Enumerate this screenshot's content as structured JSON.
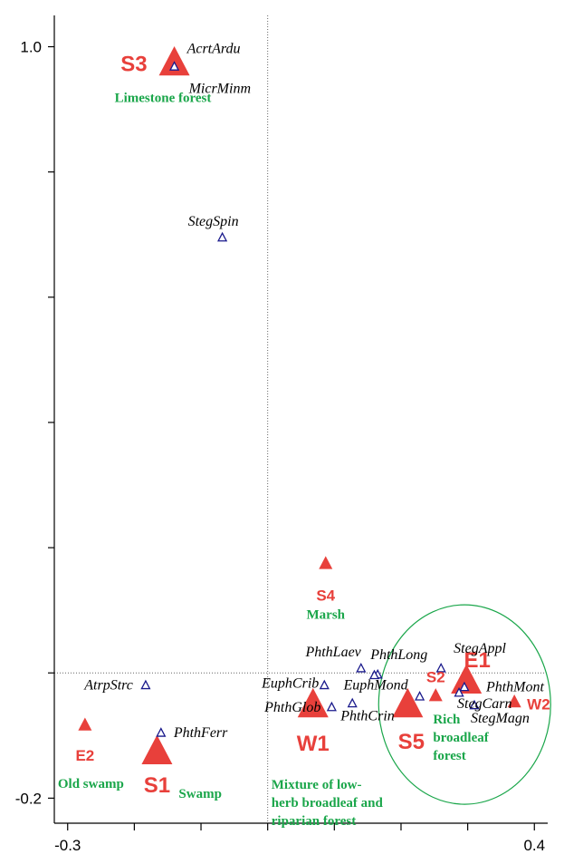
{
  "chart_data": {
    "type": "scatter",
    "title": "",
    "xlabel": "",
    "ylabel": "",
    "xlim": [
      -0.32,
      0.42
    ],
    "ylim": [
      -0.24,
      1.05
    ],
    "x_ticks": [
      -0.3,
      -0.2,
      -0.1,
      0.0,
      0.1,
      0.2,
      0.3,
      0.4
    ],
    "y_ticks": [
      -0.2,
      0.0,
      0.2,
      0.4,
      0.6,
      0.8,
      1.0
    ],
    "tick_labels": {
      "x": [
        {
          "value": -0.3,
          "text": "-0.3"
        },
        {
          "value": 0.4,
          "text": "0.4"
        }
      ],
      "y": [
        {
          "value": -0.2,
          "text": "-0.2"
        },
        {
          "value": 1.0,
          "text": "1.0"
        }
      ]
    },
    "reference_lines": {
      "x": 0.0,
      "y": 0.0,
      "style": "dotted"
    },
    "colors": {
      "sites": "#e8403b",
      "species": "#1a1a8c",
      "habitats": "#1aa64a",
      "ellipse": "#1aa64a"
    },
    "sites": [
      {
        "label": "S3",
        "x": -0.14,
        "y": 0.97,
        "size": "large"
      },
      {
        "label": "S4",
        "x": 0.087,
        "y": 0.173,
        "size": "small"
      },
      {
        "label": "E1",
        "x": 0.298,
        "y": -0.017,
        "size": "large"
      },
      {
        "label": "S2",
        "x": 0.252,
        "y": -0.038,
        "size": "small"
      },
      {
        "label": "W2",
        "x": 0.37,
        "y": -0.048,
        "size": "small"
      },
      {
        "label": "S5",
        "x": 0.21,
        "y": -0.055,
        "size": "large"
      },
      {
        "label": "W1",
        "x": 0.068,
        "y": -0.055,
        "size": "large"
      },
      {
        "label": "E2",
        "x": -0.274,
        "y": -0.085,
        "size": "small"
      },
      {
        "label": "S1",
        "x": -0.166,
        "y": -0.13,
        "size": "large"
      }
    ],
    "species": [
      {
        "label": "AcrtArdu",
        "x": -0.14,
        "y": 0.97
      },
      {
        "label": "MicrMinm",
        "x": -0.14,
        "y": 0.97
      },
      {
        "label": "StegSpin",
        "x": -0.068,
        "y": 0.697
      },
      {
        "label": "PhthLaev",
        "x": 0.14,
        "y": 0.009
      },
      {
        "label": "PhthLong",
        "x": 0.165,
        "y": -0.001
      },
      {
        "label": "StegAppl",
        "x": 0.26,
        "y": 0.009
      },
      {
        "label": "EuphMond",
        "x": 0.16,
        "y": -0.002
      },
      {
        "label": "EuphCrib",
        "x": 0.085,
        "y": -0.018
      },
      {
        "label": "AtrpStrc",
        "x": -0.183,
        "y": -0.018
      },
      {
        "label": "PhthMont",
        "x": 0.295,
        "y": -0.021
      },
      {
        "label": "StegCarn",
        "x": 0.287,
        "y": -0.03
      },
      {
        "label": "StegMagn",
        "x": 0.31,
        "y": -0.05
      },
      {
        "label": "PhthGlob",
        "x": 0.096,
        "y": -0.053
      },
      {
        "label": "PhthCrin",
        "x": 0.127,
        "y": -0.047
      },
      {
        "label": "PhthFerr",
        "x": -0.16,
        "y": -0.094
      }
    ],
    "unlabeled_species": [
      {
        "x": 0.228,
        "y": -0.036
      }
    ],
    "habitat_annotations": [
      {
        "lines": [
          "Limestone forest"
        ],
        "group": "S3"
      },
      {
        "lines": [
          "Marsh"
        ],
        "group": "S4"
      },
      {
        "lines": [
          "Rich",
          "broadleaf",
          "forest"
        ],
        "group": "S5"
      },
      {
        "lines": [
          "Mixture of low-",
          "herb broadleaf and",
          "riparian forest"
        ],
        "group": "W1"
      },
      {
        "lines": [
          "Old swamp"
        ],
        "group": "E2"
      },
      {
        "lines": [
          "Swamp"
        ],
        "group": "S1"
      }
    ],
    "ellipse_group": [
      "S2",
      "S5",
      "E1",
      "W2"
    ]
  }
}
